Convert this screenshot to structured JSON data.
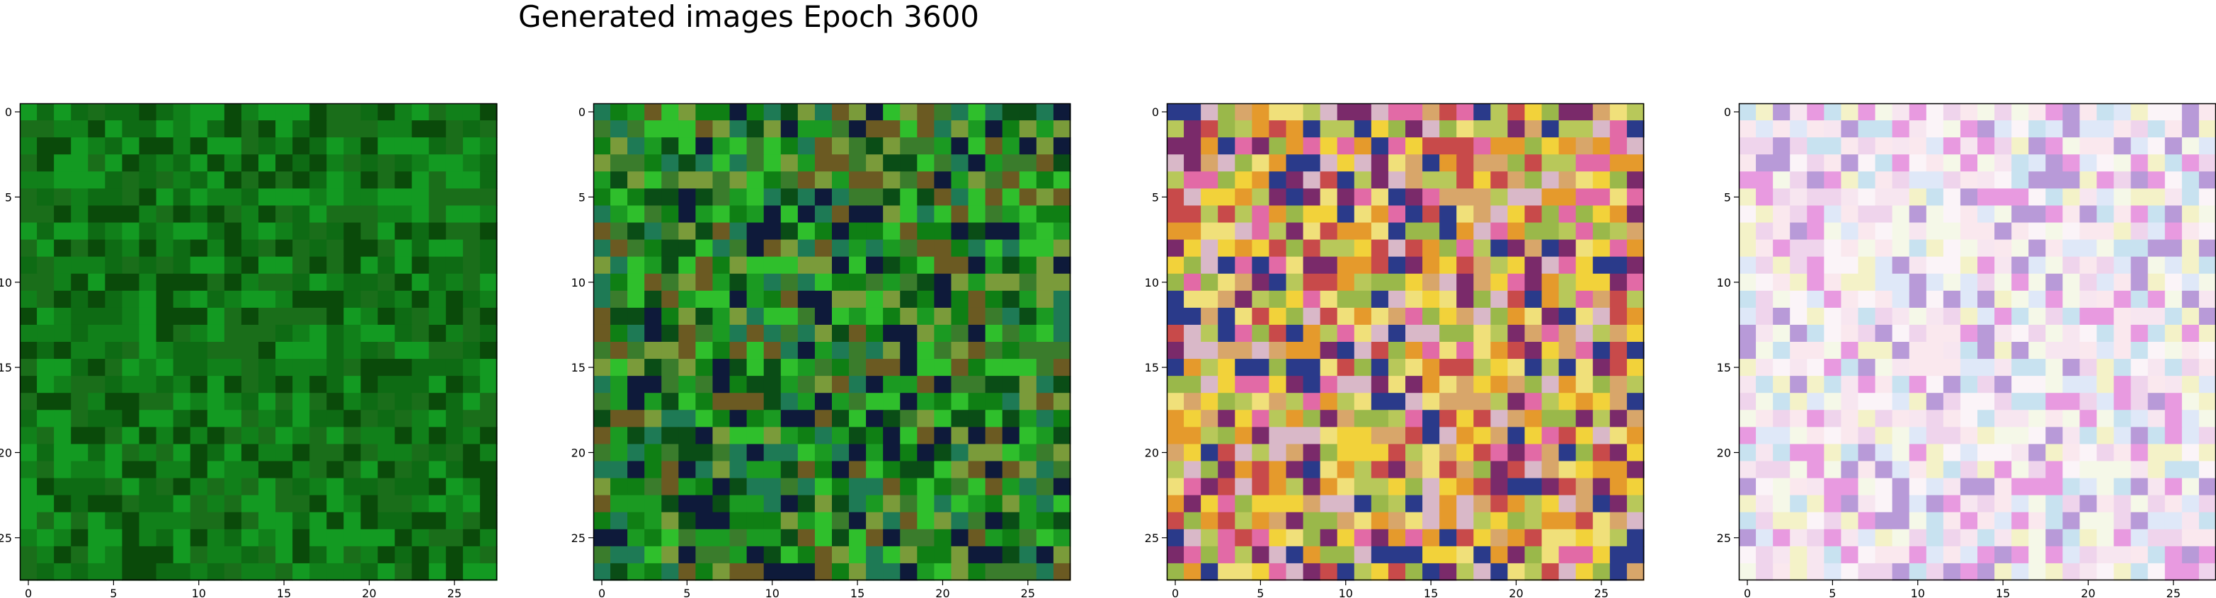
{
  "figure": {
    "title": "Generated images Epoch 3600"
  },
  "chart_data": [
    {
      "type": "heatmap",
      "content": "image",
      "grid_size": [
        28,
        28
      ],
      "palette": [
        "#0a4a0a",
        "#0e6b14",
        "#11801a",
        "#139a22",
        "#1a6e1a"
      ],
      "xticks": [
        "0",
        "5",
        "10",
        "15",
        "20",
        "25"
      ],
      "yticks": [
        "0",
        "5",
        "10",
        "15",
        "20",
        "25"
      ],
      "xlim": [
        -0.5,
        27.5
      ],
      "ylim": [
        27.5,
        -0.5
      ]
    },
    {
      "type": "heatmap",
      "content": "image",
      "grid_size": [
        28,
        28
      ],
      "palette": [
        "#0f7f14",
        "#1b9a22",
        "#0a4d16",
        "#3a7c2c",
        "#2fbf2c",
        "#0e1a3a",
        "#1e7a55",
        "#7a9b3a",
        "#6b5a22"
      ],
      "xticks": [
        "0",
        "5",
        "10",
        "15",
        "20",
        "25"
      ],
      "yticks": [
        "0",
        "5",
        "10",
        "15",
        "20",
        "25"
      ],
      "xlim": [
        -0.5,
        27.5
      ],
      "ylim": [
        27.5,
        -0.5
      ]
    },
    {
      "type": "heatmap",
      "content": "image",
      "grid_size": [
        28,
        28
      ],
      "palette": [
        "#e26aa6",
        "#d8a66a",
        "#f2d23a",
        "#e59a2c",
        "#c84a4a",
        "#9ab84a",
        "#d9b8c8",
        "#7a2a6a",
        "#2a3a8a",
        "#f0e07a",
        "#b8c85a"
      ],
      "xticks": [
        "0",
        "5",
        "10",
        "15",
        "20",
        "25"
      ],
      "yticks": [
        "0",
        "5",
        "10",
        "15",
        "20",
        "25"
      ],
      "xlim": [
        -0.5,
        27.5
      ],
      "ylim": [
        27.5,
        -0.5
      ]
    },
    {
      "type": "heatmap",
      "content": "image",
      "grid_size": [
        28,
        28
      ],
      "palette": [
        "#fbf4f8",
        "#f7e6f0",
        "#f5f8e8",
        "#efd4ec",
        "#fae8ee",
        "#dfe8f8",
        "#f4f2c8",
        "#e89ae0",
        "#c8e2f0",
        "#b89ad8"
      ],
      "xticks": [
        "0",
        "5",
        "10",
        "15",
        "20",
        "25"
      ],
      "yticks": [
        "0",
        "5",
        "10",
        "15",
        "20",
        "25"
      ],
      "xlim": [
        -0.5,
        27.5
      ],
      "ylim": [
        27.5,
        -0.5
      ]
    }
  ]
}
